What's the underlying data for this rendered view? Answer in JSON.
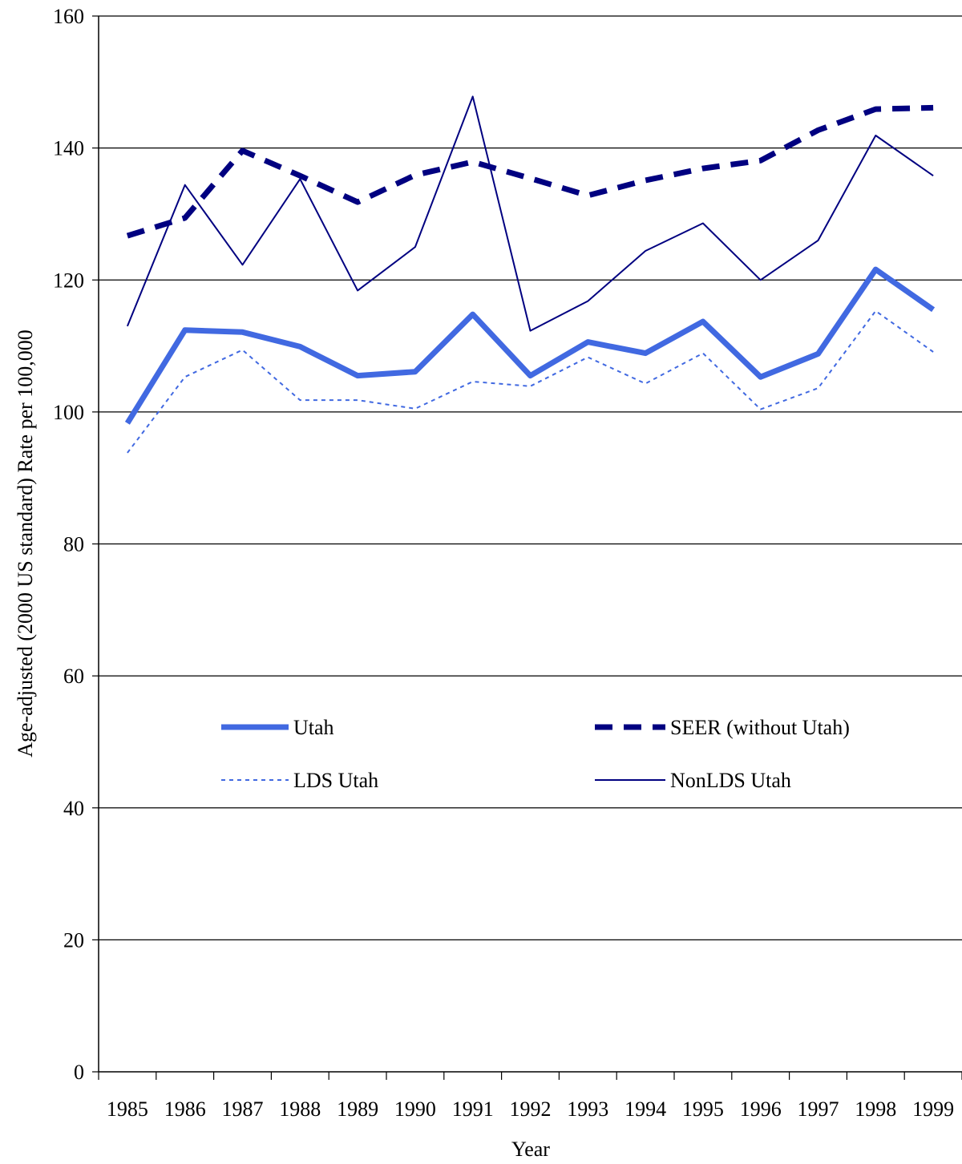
{
  "chart_data": {
    "type": "line",
    "title": "",
    "xlabel": "Year",
    "ylabel": "Age-adjusted (2000 US standard) Rate per 100,000",
    "ylim": [
      0,
      160
    ],
    "yticks": [
      "0",
      "20",
      "40",
      "60",
      "80",
      "100",
      "120",
      "140",
      "160"
    ],
    "categories": [
      "1985",
      "1986",
      "1987",
      "1988",
      "1989",
      "1990",
      "1991",
      "1992",
      "1993",
      "1994",
      "1995",
      "1996",
      "1997",
      "1998",
      "1999"
    ],
    "grid": "horizontal",
    "legend_placement": "center",
    "series": [
      {
        "name": "Utah",
        "color": "#4169e1",
        "style": "thick-solid",
        "values": [
          98.3,
          112.4,
          112.1,
          109.9,
          105.5,
          106.1,
          114.8,
          105.5,
          110.6,
          108.9,
          113.7,
          105.3,
          108.8,
          121.6,
          115.5
        ]
      },
      {
        "name": "SEER (without Utah)",
        "color": "#000080",
        "style": "thick-dashed",
        "values": [
          126.7,
          129.4,
          139.6,
          135.8,
          131.8,
          135.9,
          137.9,
          135.4,
          132.8,
          135.1,
          136.9,
          138.1,
          142.7,
          145.9,
          146.1
        ]
      },
      {
        "name": "LDS Utah",
        "color": "#4169e1",
        "style": "thin-dotted",
        "values": [
          93.8,
          105.3,
          109.4,
          101.8,
          101.8,
          100.5,
          104.6,
          103.9,
          108.3,
          104.3,
          108.9,
          100.4,
          103.6,
          115.3,
          109.1
        ]
      },
      {
        "name": "NonLDS Utah",
        "color": "#000080",
        "style": "thin-solid",
        "values": [
          113.0,
          134.4,
          122.3,
          135.3,
          118.4,
          125.0,
          147.8,
          112.3,
          116.8,
          124.4,
          128.6,
          120.0,
          126.0,
          141.9,
          135.8
        ]
      }
    ]
  }
}
